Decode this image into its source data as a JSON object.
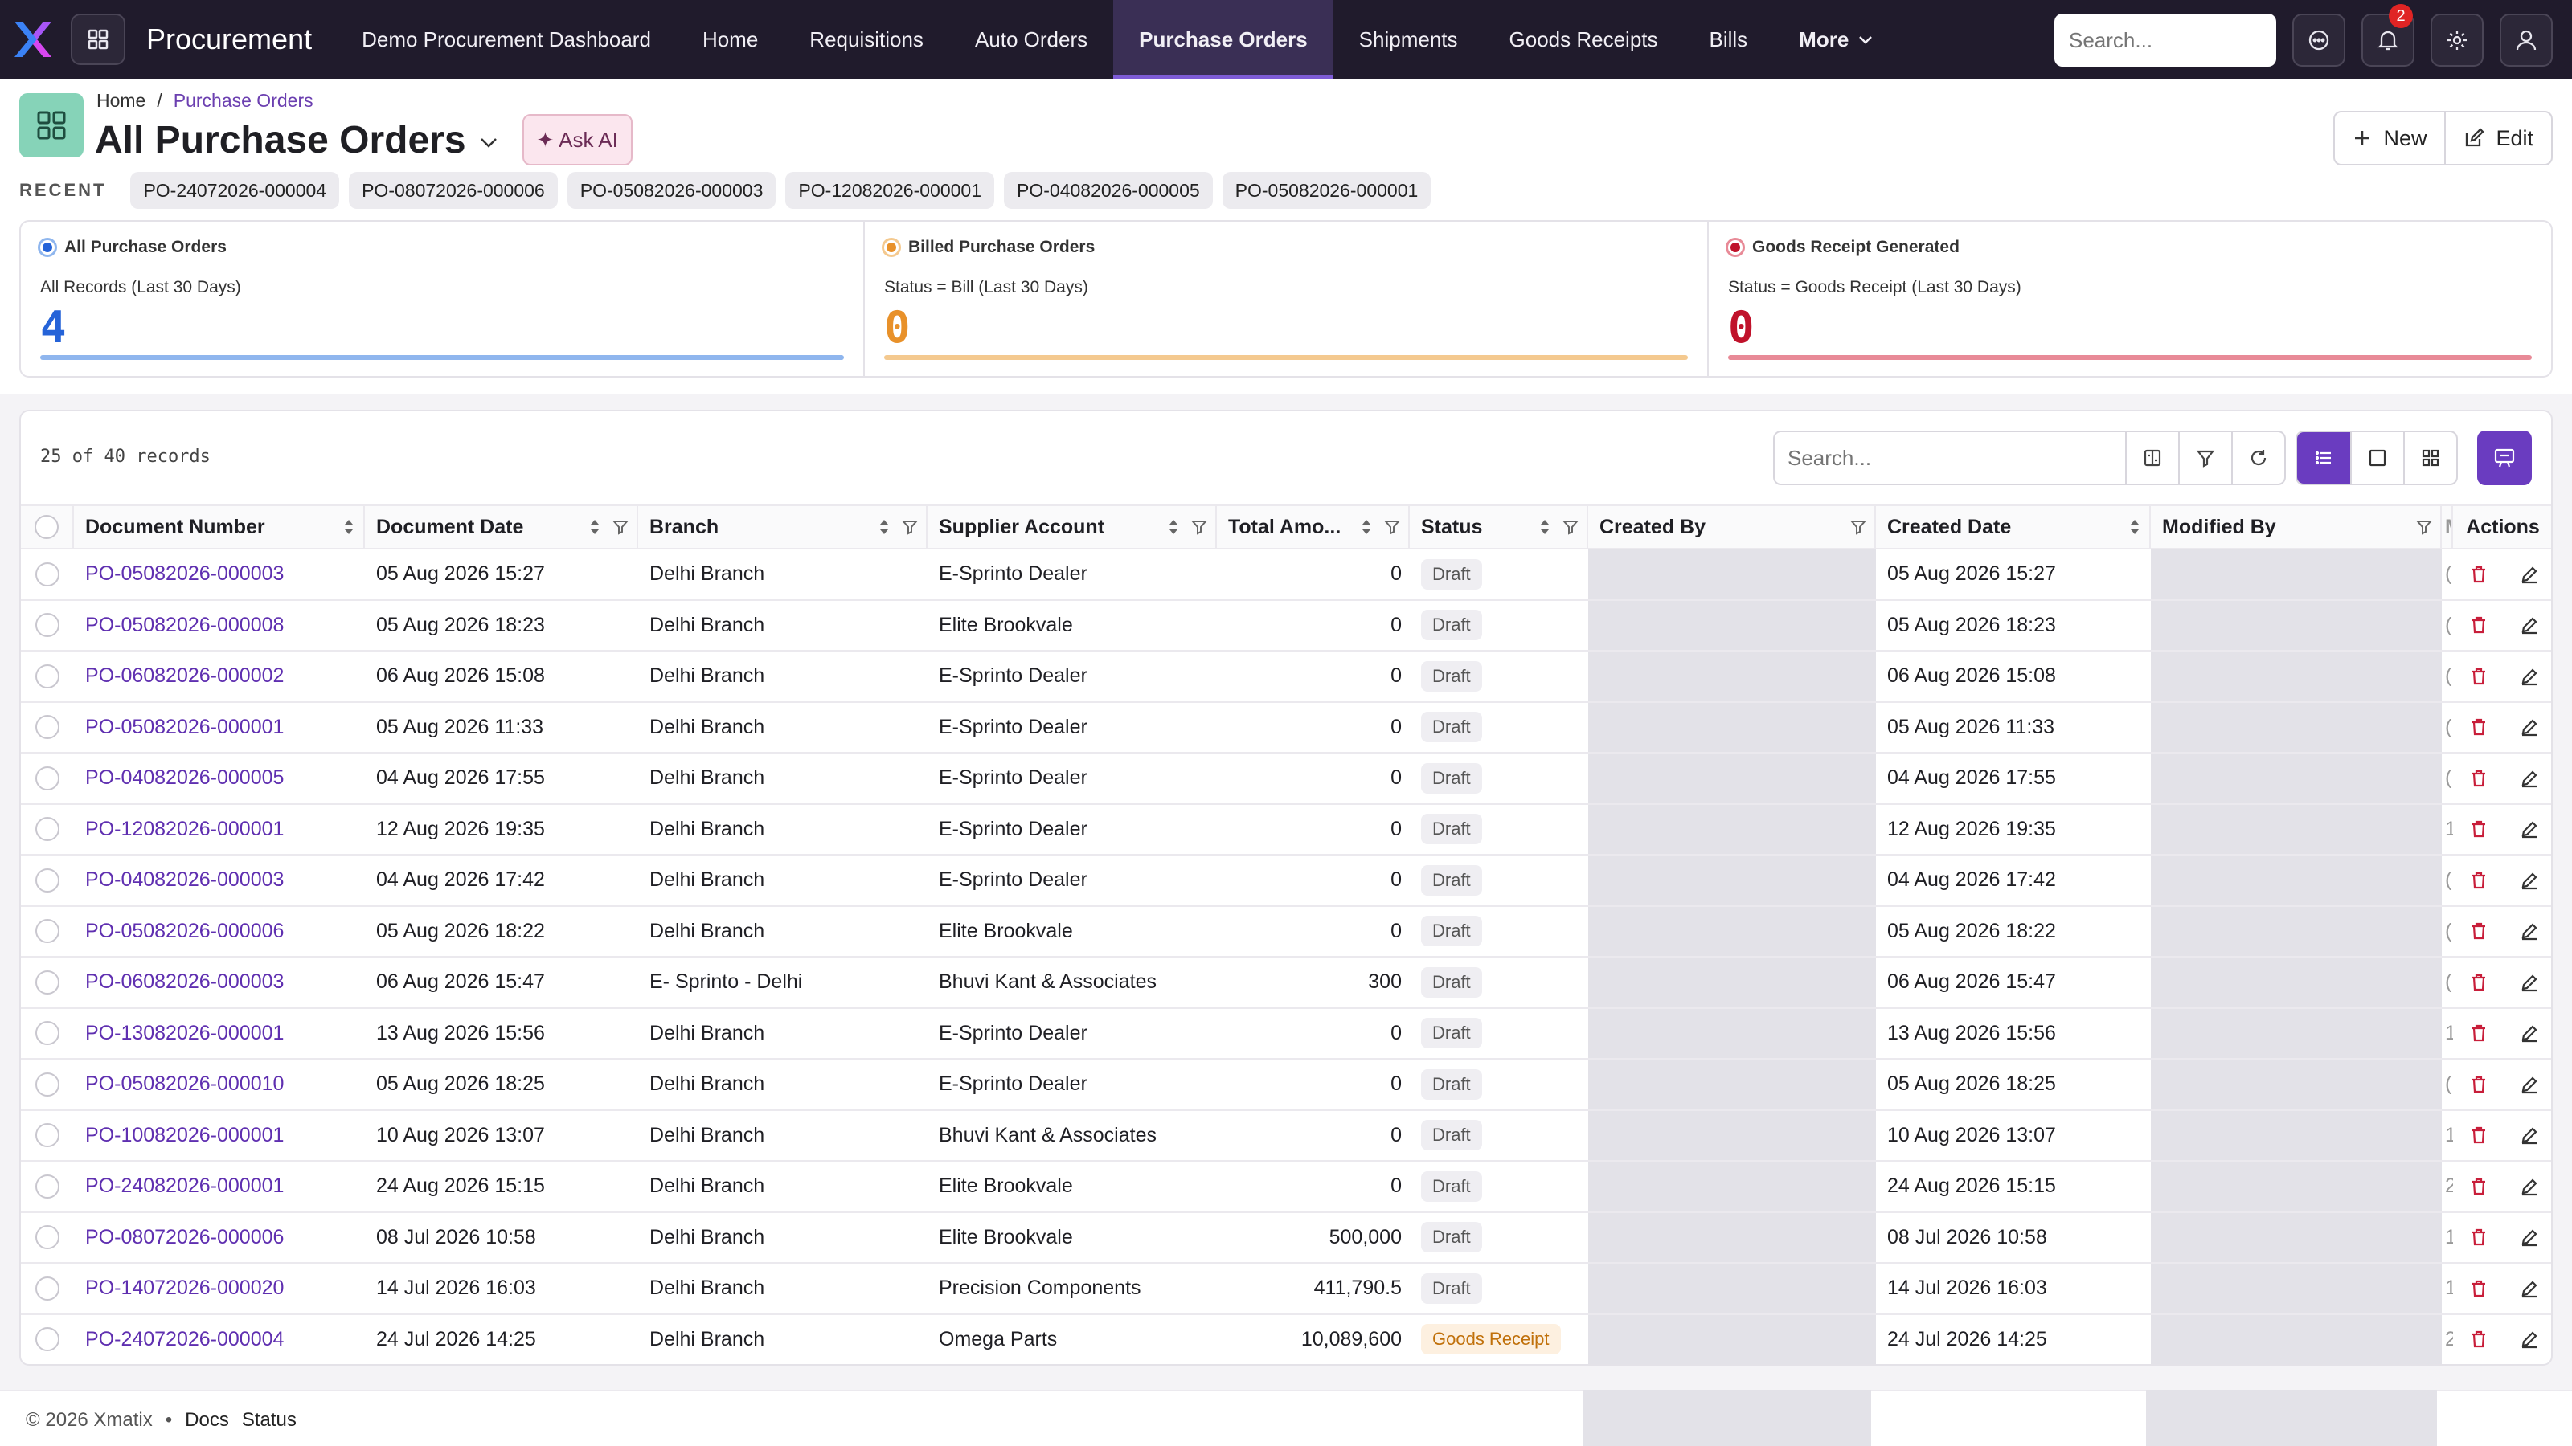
{
  "app": {
    "title": "Procurement",
    "nav": [
      "Demo Procurement Dashboard",
      "Home",
      "Requisitions",
      "Auto Orders",
      "Purchase Orders",
      "Shipments",
      "Goods Receipts",
      "Bills"
    ],
    "active_nav": "Purchase Orders",
    "more_label": "More",
    "search_placeholder": "Search...",
    "notification_count": "2"
  },
  "breadcrumb": {
    "home": "Home",
    "separator": "/",
    "current": "Purchase Orders"
  },
  "page": {
    "title": "All Purchase Orders",
    "ask_ai": "✦ Ask AI",
    "new_label": "New",
    "edit_label": "Edit"
  },
  "recent": {
    "label": "RECENT",
    "items": [
      "PO-24072026-000004",
      "PO-08072026-000006",
      "PO-05082026-000003",
      "PO-12082026-000001",
      "PO-04082026-000005",
      "PO-05082026-000001"
    ]
  },
  "kpis": [
    {
      "title": "All Purchase Orders",
      "subtitle": "All Records (Last 30 Days)",
      "value": "4",
      "color": "#2563d8",
      "bar": "#8fb6ee"
    },
    {
      "title": "Billed Purchase Orders",
      "subtitle": "Status = Bill (Last 30 Days)",
      "value": "0",
      "color": "#e8912a",
      "bar": "#f4c98f"
    },
    {
      "title": "Goods Receipt Generated",
      "subtitle": "Status = Goods Receipt (Last 30 Days)",
      "value": "0",
      "color": "#c0122b",
      "bar": "#e88a97"
    }
  ],
  "table": {
    "records_text": "25 of 40 records",
    "search_placeholder": "Search...",
    "columns": [
      "Document Number",
      "Document Date",
      "Branch",
      "Supplier Account",
      "Total Amo...",
      "Status",
      "Created By",
      "Created Date",
      "Modified By",
      "M",
      "Actions"
    ],
    "rows": [
      {
        "doc": "PO-05082026-000003",
        "date": "05 Aug 2026 15:27",
        "branch": "Delhi Branch",
        "supplier": "E-Sprinto Dealer",
        "amount": "0",
        "status": "Draft",
        "created_date": "05 Aug 2026 15:27",
        "extra": "("
      },
      {
        "doc": "PO-05082026-000008",
        "date": "05 Aug 2026 18:23",
        "branch": "Delhi Branch",
        "supplier": "Elite Brookvale",
        "amount": "0",
        "status": "Draft",
        "created_date": "05 Aug 2026 18:23",
        "extra": "("
      },
      {
        "doc": "PO-06082026-000002",
        "date": "06 Aug 2026 15:08",
        "branch": "Delhi Branch",
        "supplier": "E-Sprinto Dealer",
        "amount": "0",
        "status": "Draft",
        "created_date": "06 Aug 2026 15:08",
        "extra": "("
      },
      {
        "doc": "PO-05082026-000001",
        "date": "05 Aug 2026 11:33",
        "branch": "Delhi Branch",
        "supplier": "E-Sprinto Dealer",
        "amount": "0",
        "status": "Draft",
        "created_date": "05 Aug 2026 11:33",
        "extra": "("
      },
      {
        "doc": "PO-04082026-000005",
        "date": "04 Aug 2026 17:55",
        "branch": "Delhi Branch",
        "supplier": "E-Sprinto Dealer",
        "amount": "0",
        "status": "Draft",
        "created_date": "04 Aug 2026 17:55",
        "extra": "("
      },
      {
        "doc": "PO-12082026-000001",
        "date": "12 Aug 2026 19:35",
        "branch": "Delhi Branch",
        "supplier": "E-Sprinto Dealer",
        "amount": "0",
        "status": "Draft",
        "created_date": "12 Aug 2026 19:35",
        "extra": "1"
      },
      {
        "doc": "PO-04082026-000003",
        "date": "04 Aug 2026 17:42",
        "branch": "Delhi Branch",
        "supplier": "E-Sprinto Dealer",
        "amount": "0",
        "status": "Draft",
        "created_date": "04 Aug 2026 17:42",
        "extra": "("
      },
      {
        "doc": "PO-05082026-000006",
        "date": "05 Aug 2026 18:22",
        "branch": "Delhi Branch",
        "supplier": "Elite Brookvale",
        "amount": "0",
        "status": "Draft",
        "created_date": "05 Aug 2026 18:22",
        "extra": "("
      },
      {
        "doc": "PO-06082026-000003",
        "date": "06 Aug 2026 15:47",
        "branch": "E- Sprinto - Delhi",
        "supplier": "Bhuvi Kant & Associates",
        "amount": "300",
        "status": "Draft",
        "created_date": "06 Aug 2026 15:47",
        "extra": "("
      },
      {
        "doc": "PO-13082026-000001",
        "date": "13 Aug 2026 15:56",
        "branch": "Delhi Branch",
        "supplier": "E-Sprinto Dealer",
        "amount": "0",
        "status": "Draft",
        "created_date": "13 Aug 2026 15:56",
        "extra": "1"
      },
      {
        "doc": "PO-05082026-000010",
        "date": "05 Aug 2026 18:25",
        "branch": "Delhi Branch",
        "supplier": "E-Sprinto Dealer",
        "amount": "0",
        "status": "Draft",
        "created_date": "05 Aug 2026 18:25",
        "extra": "("
      },
      {
        "doc": "PO-10082026-000001",
        "date": "10 Aug 2026 13:07",
        "branch": "Delhi Branch",
        "supplier": "Bhuvi Kant & Associates",
        "amount": "0",
        "status": "Draft",
        "created_date": "10 Aug 2026 13:07",
        "extra": "1"
      },
      {
        "doc": "PO-24082026-000001",
        "date": "24 Aug 2026 15:15",
        "branch": "Delhi Branch",
        "supplier": "Elite Brookvale",
        "amount": "0",
        "status": "Draft",
        "created_date": "24 Aug 2026 15:15",
        "extra": "2"
      },
      {
        "doc": "PO-08072026-000006",
        "date": "08 Jul 2026 10:58",
        "branch": "Delhi Branch",
        "supplier": "Elite Brookvale",
        "amount": "500,000",
        "status": "Draft",
        "created_date": "08 Jul 2026 10:58",
        "extra": "1"
      },
      {
        "doc": "PO-14072026-000020",
        "date": "14 Jul 2026 16:03",
        "branch": "Delhi Branch",
        "supplier": "Precision Components",
        "amount": "411,790.5",
        "status": "Draft",
        "created_date": "14 Jul 2026 16:03",
        "extra": "1"
      },
      {
        "doc": "PO-24072026-000004",
        "date": "24 Jul 2026 14:25",
        "branch": "Delhi Branch",
        "supplier": "Omega Parts",
        "amount": "10,089,600",
        "status": "Goods Receipt",
        "created_date": "24 Jul 2026 14:25",
        "extra": "2"
      }
    ]
  },
  "footer": {
    "copyright": "© 2026 Xmatix",
    "bullet": "•",
    "docs": "Docs",
    "status": "Status"
  }
}
